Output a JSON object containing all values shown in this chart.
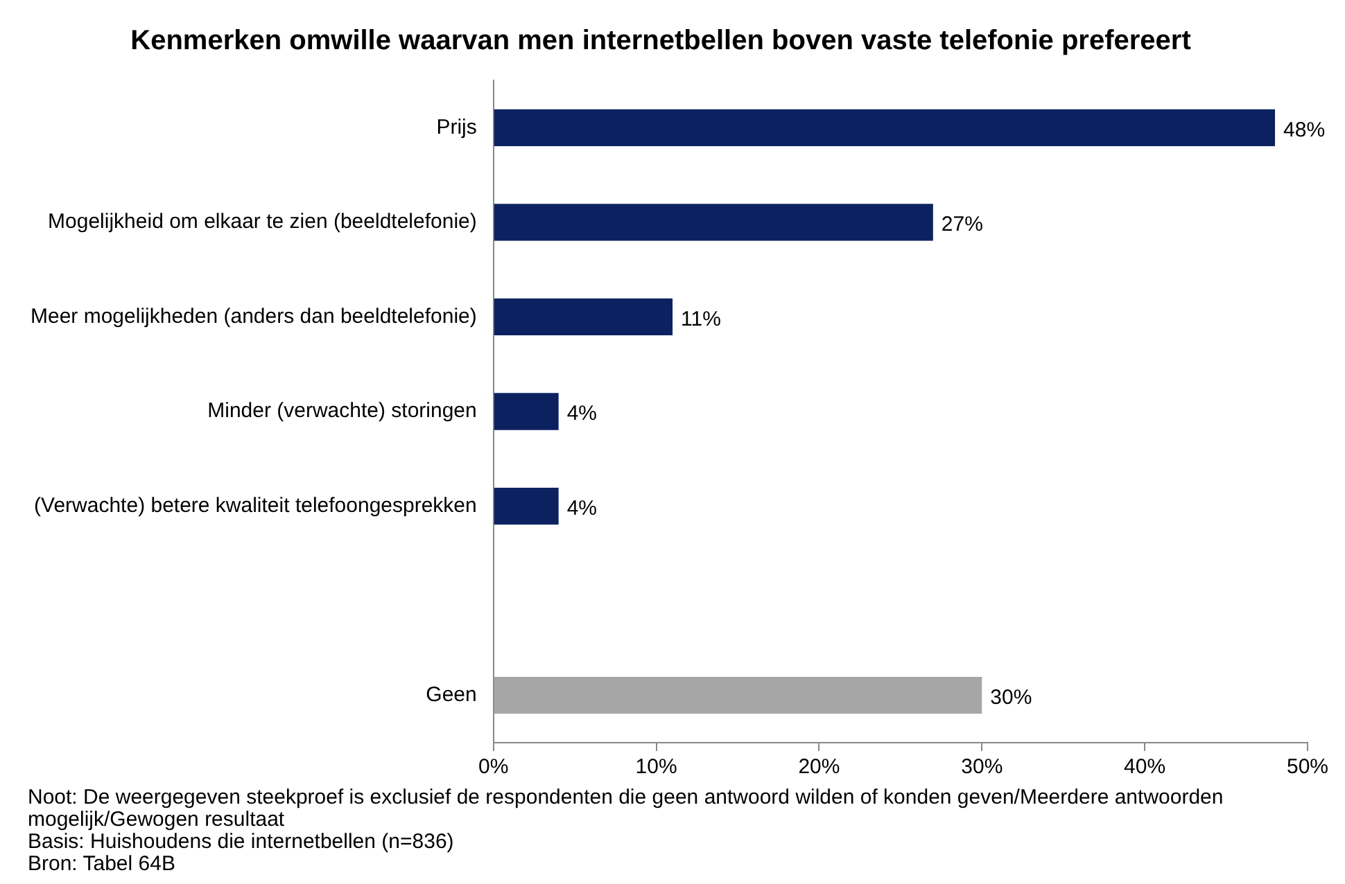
{
  "chart_data": {
    "type": "bar",
    "orientation": "horizontal",
    "title": "Kenmerken omwille waarvan men internetbellen boven vaste telefonie prefereert",
    "categories": [
      "Prijs",
      "Mogelijkheid om elkaar te zien (beeldtelefonie)",
      "Meer mogelijkheden (anders dan beeldtelefonie)",
      "Minder (verwachte) storingen",
      "(Verwachte) betere kwaliteit telefoongesprekken",
      null,
      "Geen"
    ],
    "values": [
      48,
      27,
      11,
      4,
      4,
      null,
      30
    ],
    "colors": [
      "#0c2260",
      "#0c2260",
      "#0c2260",
      "#0c2260",
      "#0c2260",
      "#0c2260",
      "#a6a6a6"
    ],
    "value_labels": [
      "48%",
      "27%",
      "11%",
      "4%",
      "4%",
      null,
      "30%"
    ],
    "xlim": [
      0,
      50
    ],
    "xticks": [
      {
        "value": 0,
        "label": "0%"
      },
      {
        "value": 10,
        "label": "10%"
      },
      {
        "value": 20,
        "label": "20%"
      },
      {
        "value": 30,
        "label": "30%"
      },
      {
        "value": 40,
        "label": "40%"
      },
      {
        "value": 50,
        "label": "50%"
      }
    ],
    "grid": false,
    "legend": false,
    "annotations": [
      "Noot: De weergegeven steekproef is exclusief de respondenten die geen antwoord wilden of konden geven/Meerdere antwoorden mogelijk/Gewogen resultaat",
      "Basis: Huishoudens die internetbellen (n=836)",
      "Bron: Tabel 64B"
    ]
  }
}
